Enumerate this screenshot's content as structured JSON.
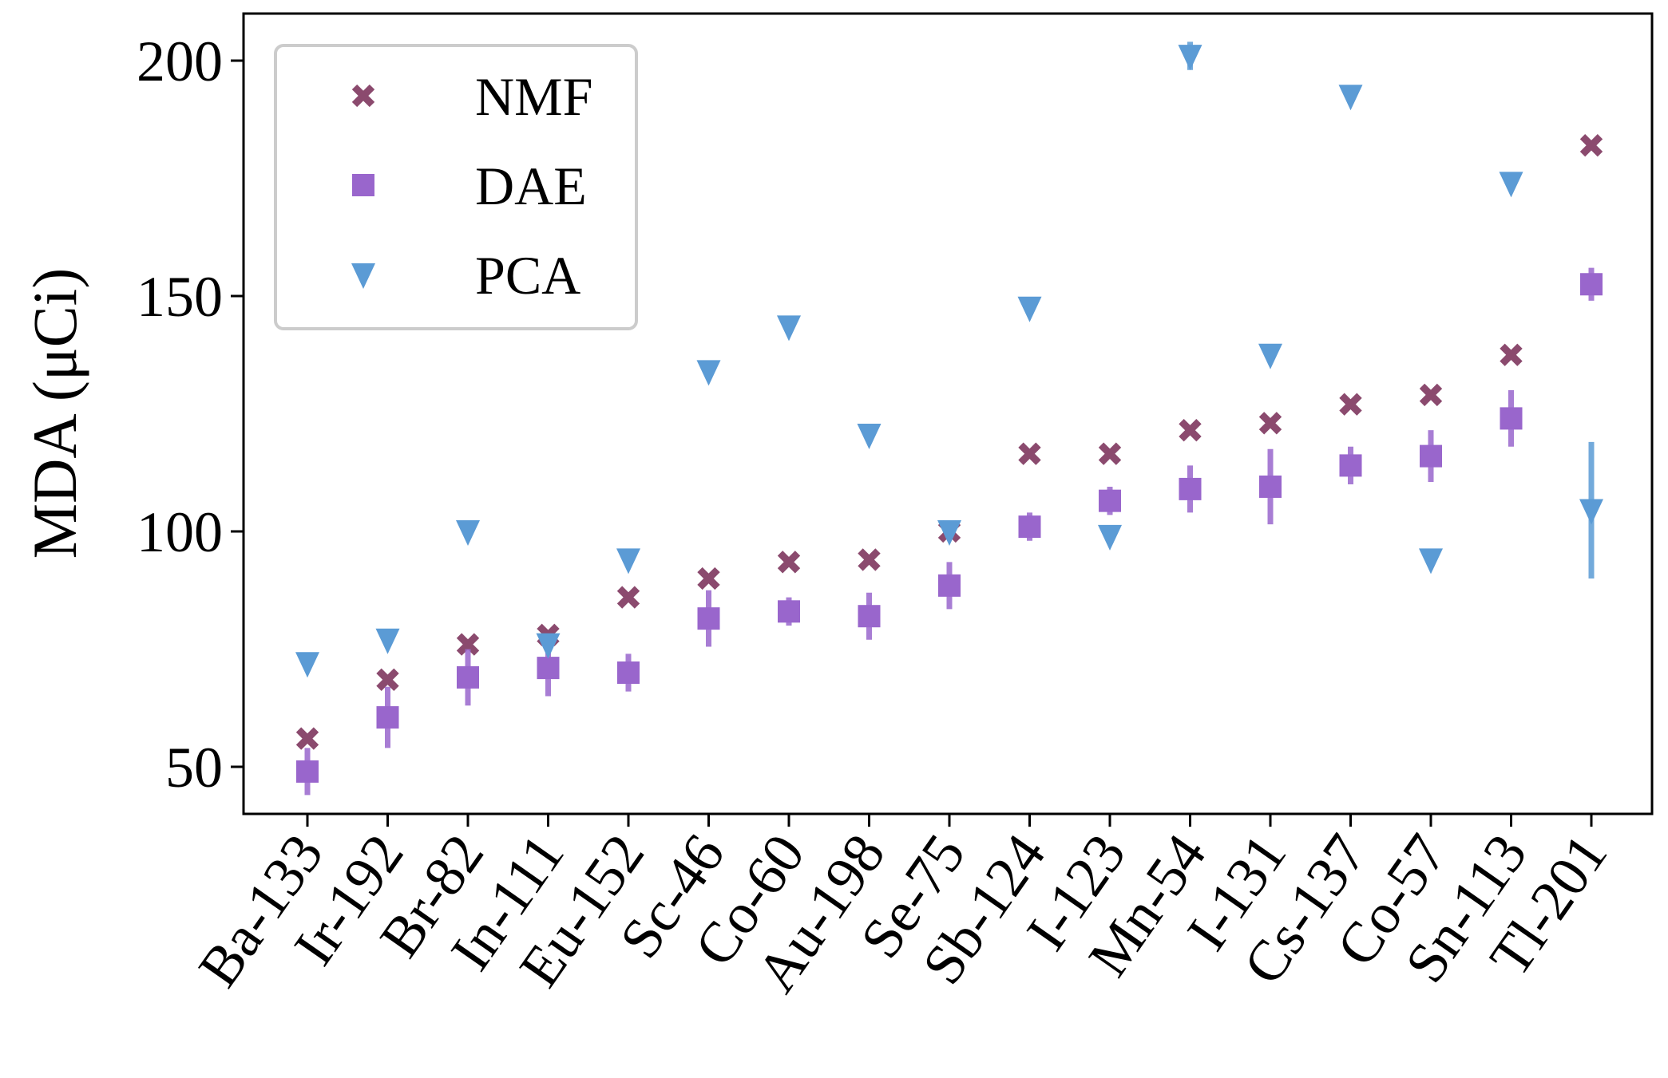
{
  "chart_data": {
    "type": "scatter",
    "title": "",
    "xlabel": "",
    "ylabel": "MDA (μCi)",
    "ylim": [
      40,
      210
    ],
    "yticks": [
      50,
      100,
      150,
      200
    ],
    "categories": [
      "Ba-133",
      "Ir-192",
      "Br-82",
      "In-111",
      "Eu-152",
      "Sc-46",
      "Co-60",
      "Au-198",
      "Se-75",
      "Sb-124",
      "I-123",
      "Mn-54",
      "I-131",
      "Cs-137",
      "Co-57",
      "Sn-113",
      "Tl-201"
    ],
    "legend_position": "top-left",
    "grid": false,
    "series": [
      {
        "name": "NMF",
        "marker": "x",
        "color": "#8b4a6e",
        "values": [
          56,
          68.5,
          76,
          78,
          86,
          90,
          93.5,
          94,
          100,
          116.5,
          116.5,
          121.5,
          123,
          127,
          129,
          137.5,
          182
        ],
        "errors": [
          1,
          1,
          1,
          1,
          1,
          1,
          1,
          1,
          1,
          1,
          1,
          1,
          1,
          1,
          1,
          1,
          1
        ]
      },
      {
        "name": "DAE",
        "marker": "square",
        "color": "#9966cc",
        "values": [
          49,
          60.5,
          69,
          71,
          70,
          81.5,
          83,
          82,
          88.5,
          101,
          106.5,
          109,
          109.5,
          114,
          116,
          124,
          152.5
        ],
        "errors": [
          5,
          6.5,
          6,
          6,
          4,
          6,
          3,
          5,
          5,
          3,
          3,
          5,
          8,
          4,
          5.5,
          6,
          3.5
        ]
      },
      {
        "name": "PCA",
        "marker": "triangle-down",
        "color": "#5b9bd5",
        "values": [
          72,
          77,
          100,
          76,
          94,
          134,
          143.5,
          120.5,
          100,
          147.5,
          99,
          201,
          137.5,
          192.5,
          94,
          174,
          104.5
        ],
        "errors": [
          1,
          1,
          1,
          1,
          1,
          1,
          1,
          1,
          1,
          1,
          1,
          3,
          1,
          1,
          1,
          1,
          14.5
        ]
      }
    ]
  }
}
